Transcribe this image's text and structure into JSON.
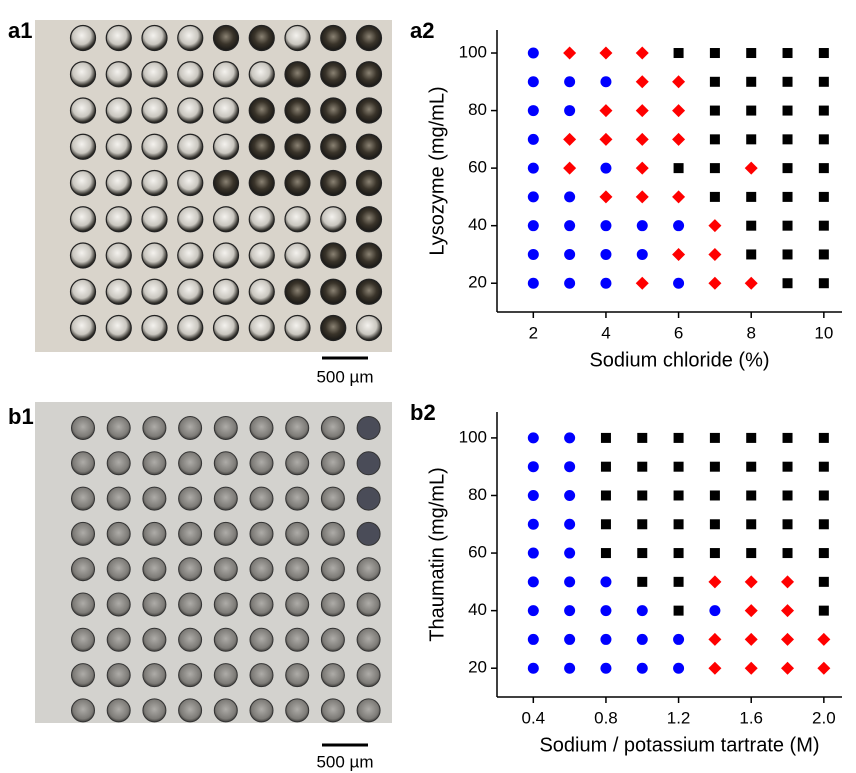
{
  "images": [
    {
      "panel_label": "a1",
      "scale_bar": "500 µm"
    },
    {
      "panel_label": "b1",
      "scale_bar": "500 µm"
    }
  ],
  "chart_data": [
    {
      "type": "scatter",
      "panel_label": "a2",
      "x_label": "Sodium chloride (%)",
      "y_label": "Lysozyme (mg/mL)",
      "xlim": [
        1,
        10.5
      ],
      "ylim": [
        10,
        108
      ],
      "xticks": [
        2,
        4,
        6,
        8,
        10
      ],
      "yticks": [
        20,
        40,
        60,
        80,
        100
      ],
      "series": [
        {
          "marker": "circle",
          "color": "#0000ff",
          "x": [
            2,
            2,
            3,
            4,
            2,
            3,
            2,
            2,
            4,
            2,
            3,
            2,
            3,
            4,
            5,
            6,
            2,
            3,
            4,
            5,
            2,
            3,
            4,
            6
          ],
          "y": [
            100,
            90,
            90,
            90,
            80,
            80,
            70,
            60,
            60,
            50,
            50,
            40,
            40,
            40,
            40,
            40,
            30,
            30,
            30,
            30,
            20,
            20,
            20,
            20
          ]
        },
        {
          "marker": "diamond",
          "color": "#ff0000",
          "x": [
            3,
            4,
            5,
            5,
            6,
            4,
            5,
            6,
            3,
            4,
            5,
            6,
            3,
            5,
            8,
            4,
            5,
            6,
            7,
            6,
            7,
            5,
            7,
            8
          ],
          "y": [
            100,
            100,
            100,
            90,
            90,
            80,
            80,
            80,
            70,
            70,
            70,
            70,
            60,
            60,
            60,
            50,
            50,
            50,
            40,
            30,
            30,
            20,
            20,
            20
          ]
        },
        {
          "marker": "square",
          "color": "#000000",
          "x": [
            6,
            7,
            8,
            9,
            10,
            7,
            8,
            9,
            10,
            7,
            8,
            9,
            10,
            7,
            8,
            9,
            10,
            6,
            7,
            9,
            10,
            7,
            8,
            9,
            10,
            8,
            9,
            10,
            8,
            9,
            10,
            9,
            10
          ],
          "y": [
            100,
            100,
            100,
            100,
            100,
            90,
            90,
            90,
            90,
            80,
            80,
            80,
            80,
            70,
            70,
            70,
            70,
            60,
            60,
            60,
            60,
            50,
            50,
            50,
            50,
            40,
            40,
            40,
            30,
            30,
            30,
            20,
            20
          ]
        }
      ]
    },
    {
      "type": "scatter",
      "panel_label": "b2",
      "x_label": "Sodium / potassium tartrate (M)",
      "y_label": "Thaumatin (mg/mL)",
      "xlim": [
        0.2,
        2.1
      ],
      "ylim": [
        10,
        109
      ],
      "xticks": [
        0.4,
        0.8,
        1.2,
        1.6,
        {
          "value": 2,
          "label": "2.0"
        }
      ],
      "yticks": [
        20,
        40,
        60,
        80,
        100
      ],
      "series": [
        {
          "marker": "circle",
          "color": "#0000ff",
          "x": [
            0.4,
            0.6,
            0.4,
            0.6,
            0.4,
            0.6,
            0.4,
            0.6,
            0.4,
            0.6,
            0.4,
            0.6,
            0.8,
            0.4,
            0.6,
            0.8,
            1.0,
            1.4,
            0.4,
            0.6,
            0.8,
            1.0,
            1.2,
            0.4,
            0.6,
            0.8,
            1.0,
            1.2
          ],
          "y": [
            100,
            100,
            90,
            90,
            80,
            80,
            70,
            70,
            60,
            60,
            50,
            50,
            50,
            40,
            40,
            40,
            40,
            40,
            30,
            30,
            30,
            30,
            30,
            20,
            20,
            20,
            20,
            20
          ]
        },
        {
          "marker": "diamond",
          "color": "#ff0000",
          "x": [
            1.4,
            1.6,
            1.8,
            1.6,
            1.8,
            1.4,
            1.6,
            1.8,
            2.0,
            1.4,
            1.6,
            1.8,
            2.0
          ],
          "y": [
            50,
            50,
            50,
            40,
            40,
            30,
            30,
            30,
            30,
            20,
            20,
            20,
            20
          ]
        },
        {
          "marker": "square",
          "color": "#000000",
          "x": [
            0.8,
            1.0,
            1.2,
            1.4,
            1.6,
            1.8,
            2.0,
            0.8,
            1.0,
            1.2,
            1.4,
            1.6,
            1.8,
            2.0,
            0.8,
            1.0,
            1.2,
            1.4,
            1.6,
            1.8,
            2.0,
            0.8,
            1.0,
            1.2,
            1.4,
            1.6,
            1.8,
            2.0,
            0.8,
            1.0,
            1.2,
            1.4,
            1.6,
            1.8,
            2.0,
            1.0,
            1.2,
            2.0,
            1.2,
            2.0
          ],
          "y": [
            100,
            100,
            100,
            100,
            100,
            100,
            100,
            90,
            90,
            90,
            90,
            90,
            90,
            90,
            80,
            80,
            80,
            80,
            80,
            80,
            80,
            70,
            70,
            70,
            70,
            70,
            70,
            70,
            60,
            60,
            60,
            60,
            60,
            60,
            60,
            50,
            50,
            50,
            40,
            40
          ]
        }
      ]
    }
  ]
}
